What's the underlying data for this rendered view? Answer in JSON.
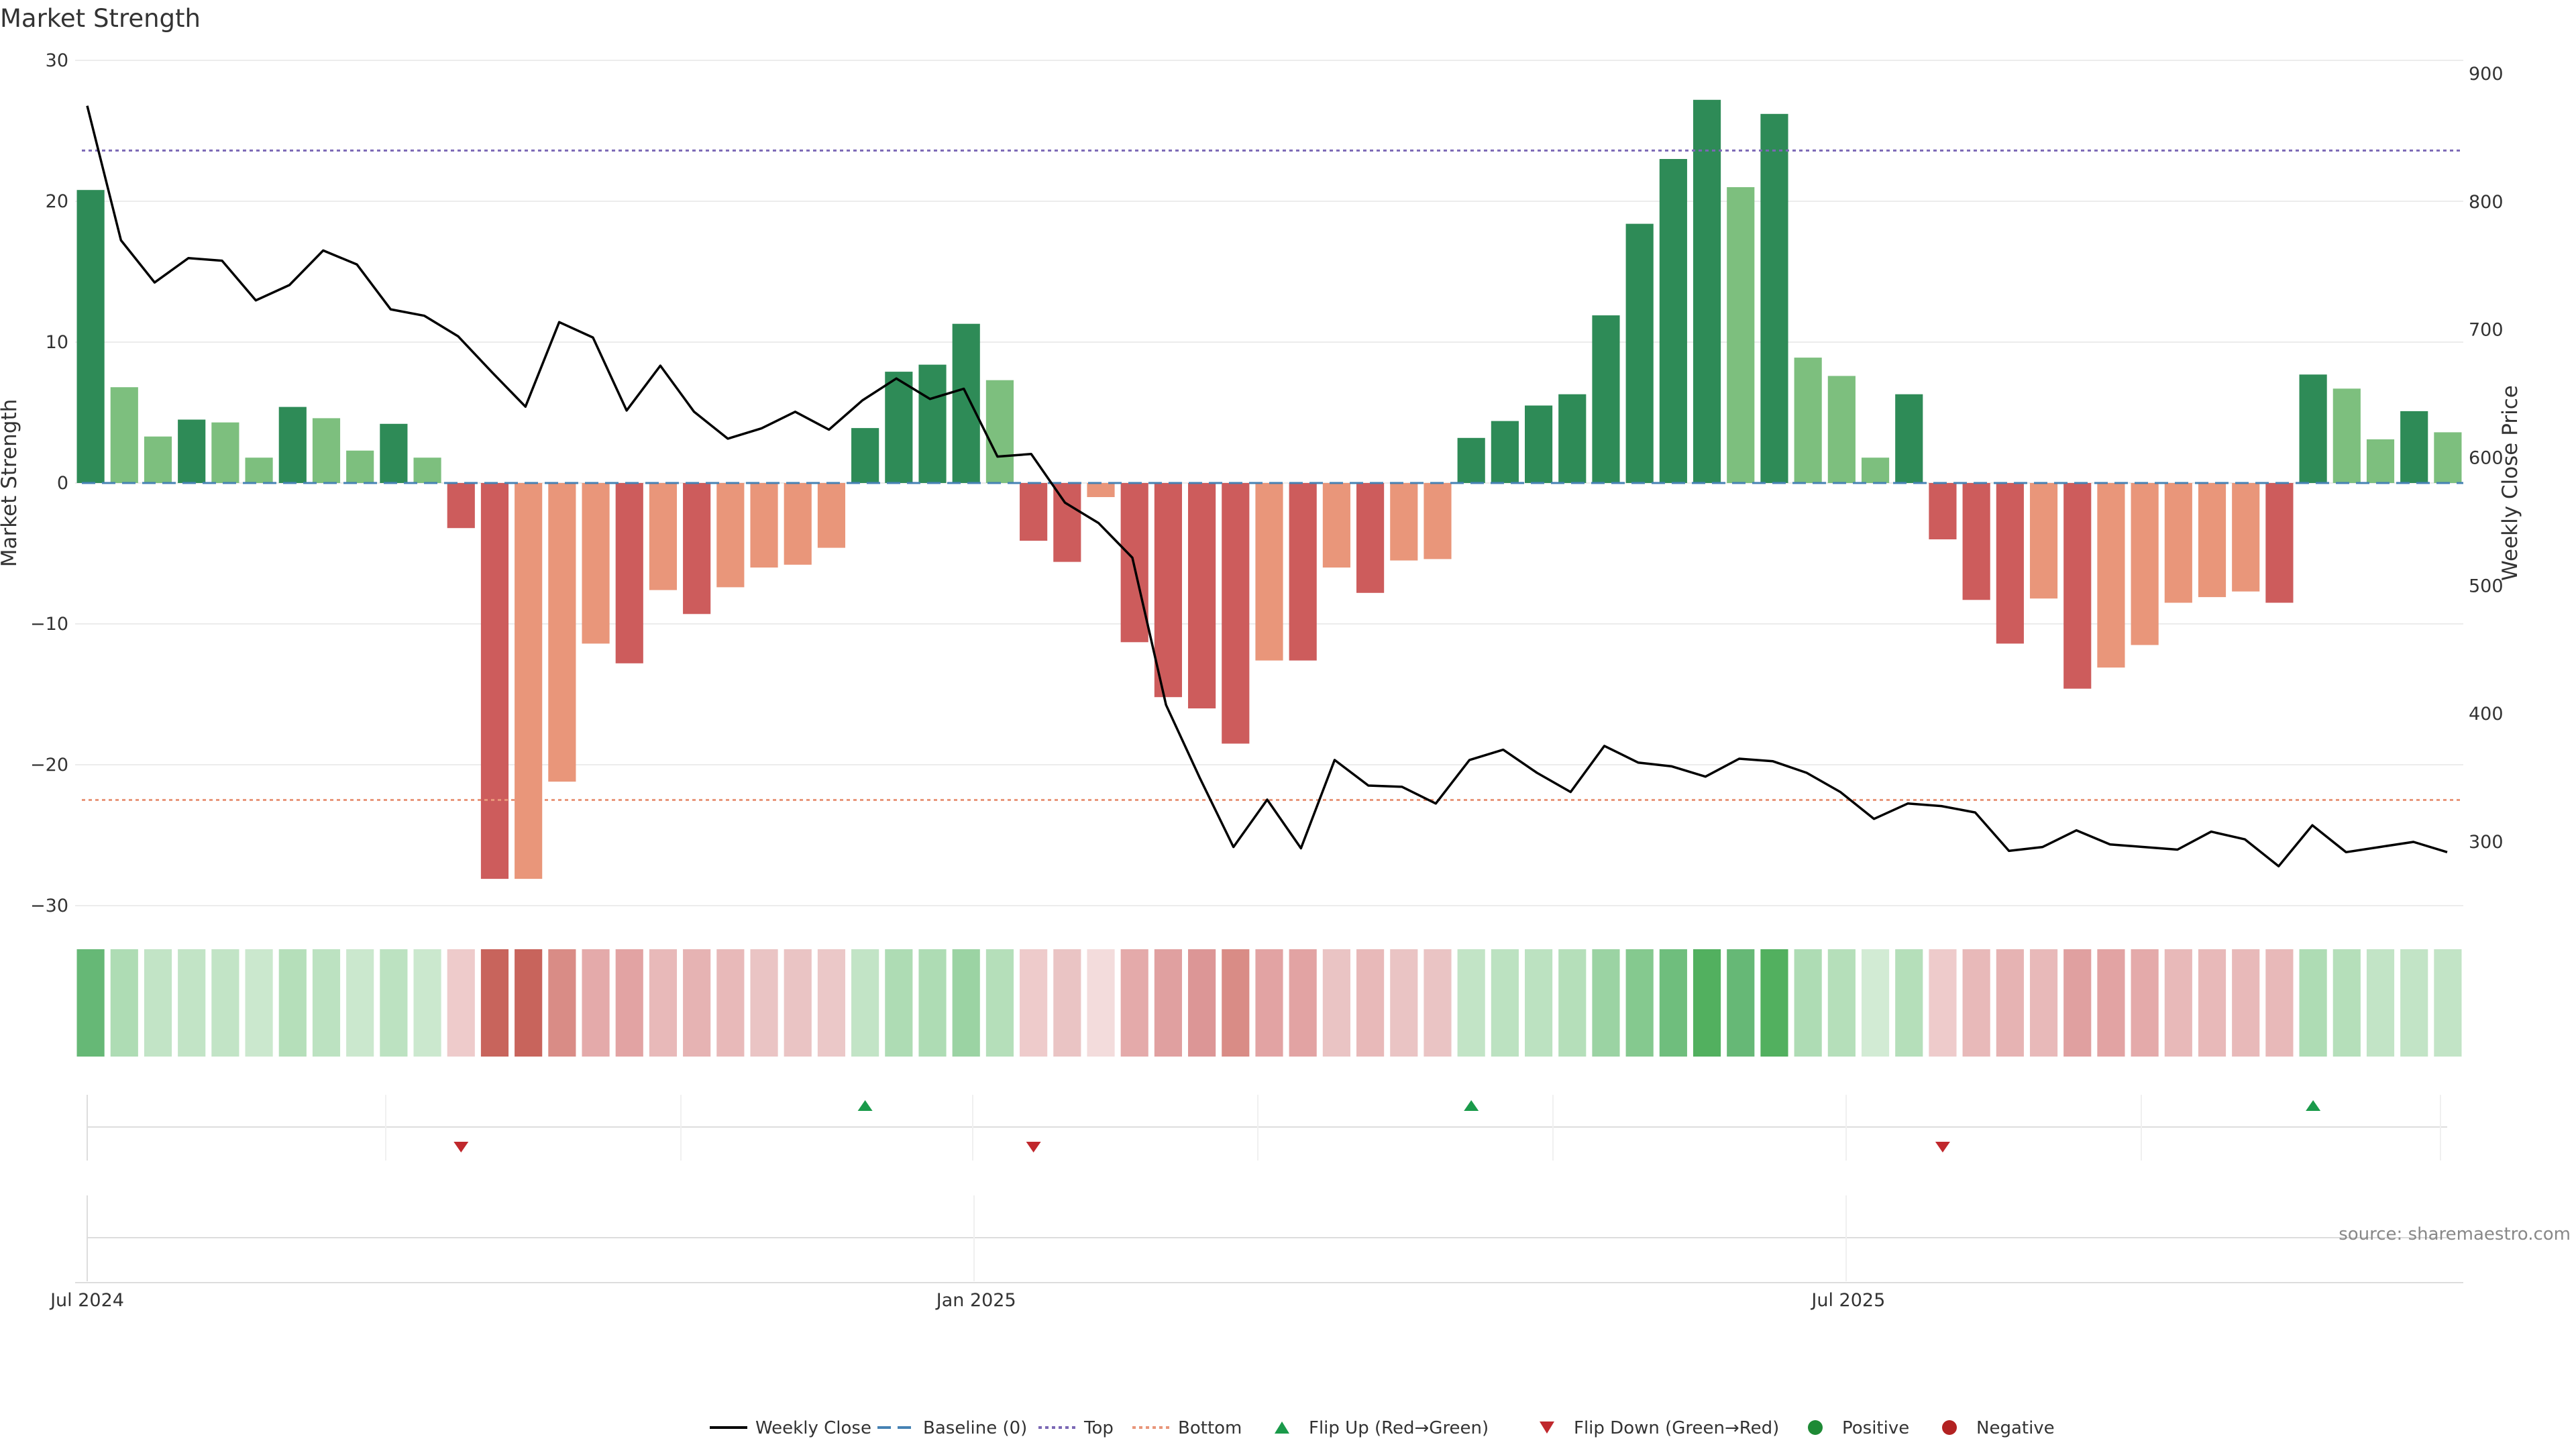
{
  "chart_data": {
    "type": "bar",
    "title": "Market Strength",
    "ylabel_left": "Market Strength",
    "ylabel_right": "Weekly Close Price",
    "ylim_left": [
      -30,
      30
    ],
    "ylim_right": [
      250,
      900
    ],
    "y_ticks_left": [
      30,
      20,
      10,
      0,
      -10,
      -20,
      -30
    ],
    "y_tick_labels_left": [
      "30",
      "20",
      "10",
      "0",
      "−10",
      "−20",
      "−30"
    ],
    "y_ticks_right": [
      900,
      800,
      700,
      600,
      500,
      400,
      300
    ],
    "y_tick_labels_right": [
      "900",
      "800",
      "700",
      "600",
      "500",
      "400",
      "300"
    ],
    "x_tick_labels": [
      {
        "label": "Jul 2024",
        "week_index": 0
      },
      {
        "label": "Jan 2025",
        "week_index": 26.4
      },
      {
        "label": "Jul 2025",
        "week_index": 52.3
      }
    ],
    "reference_lines": {
      "top": 23.6,
      "bottom": -22.5,
      "baseline": 0
    },
    "strength_values": [
      20.8,
      6.8,
      3.3,
      4.5,
      4.3,
      1.8,
      5.4,
      4.6,
      2.3,
      4.2,
      1.8,
      -3.2,
      -28.1,
      -28.1,
      -21.2,
      -11.4,
      -12.8,
      -7.6,
      -9.3,
      -7.4,
      -6.0,
      -5.8,
      -4.6,
      3.9,
      7.9,
      8.4,
      11.3,
      7.3,
      -4.1,
      -5.6,
      -1.0,
      -11.3,
      -15.2,
      -16.0,
      -18.5,
      -12.6,
      -12.6,
      -6.0,
      -7.8,
      -5.5,
      -5.4,
      3.2,
      4.4,
      5.5,
      6.3,
      11.9,
      18.4,
      23.0,
      27.2,
      21.0,
      26.2,
      8.9,
      7.6,
      1.8,
      6.3,
      -4.0,
      -8.3,
      -11.4,
      -8.2,
      -14.6,
      -13.1,
      -11.5,
      -8.5,
      -8.1,
      -7.7,
      -8.5,
      7.7,
      6.7,
      3.1,
      5.1,
      3.6
    ],
    "bar_colors": [
      "#2e8b57",
      "#7dbf7e",
      "#7dbf7e",
      "#2e8b57",
      "#7dbf7e",
      "#7dbf7e",
      "#2e8b57",
      "#7dbf7e",
      "#7dbf7e",
      "#2e8b57",
      "#7dbf7e",
      "#cd5c5c",
      "#cd5c5c",
      "#e9967a",
      "#e9967a",
      "#e9967a",
      "#cd5c5c",
      "#e9967a",
      "#cd5c5c",
      "#e9967a",
      "#e9967a",
      "#e9967a",
      "#e9967a",
      "#2e8b57",
      "#2e8b57",
      "#2e8b57",
      "#2e8b57",
      "#7dbf7e",
      "#cd5c5c",
      "#cd5c5c",
      "#e9967a",
      "#cd5c5c",
      "#cd5c5c",
      "#cd5c5c",
      "#cd5c5c",
      "#e9967a",
      "#cd5c5c",
      "#e9967a",
      "#cd5c5c",
      "#e9967a",
      "#e9967a",
      "#2e8b57",
      "#2e8b57",
      "#2e8b57",
      "#2e8b57",
      "#2e8b57",
      "#2e8b57",
      "#2e8b57",
      "#2e8b57",
      "#7dbf7e",
      "#2e8b57",
      "#7dbf7e",
      "#7dbf7e",
      "#7dbf7e",
      "#2e8b57",
      "#cd5c5c",
      "#cd5c5c",
      "#cd5c5c",
      "#e9967a",
      "#cd5c5c",
      "#e9967a",
      "#e9967a",
      "#e9967a",
      "#e9967a",
      "#e9967a",
      "#cd5c5c",
      "#2e8b57",
      "#7dbf7e",
      "#7dbf7e",
      "#2e8b57",
      "#7dbf7e"
    ],
    "series": [
      {
        "name": "Weekly Close",
        "points": [
          [
            0,
            875
          ],
          [
            1,
            770
          ],
          [
            2,
            737
          ],
          [
            3,
            756
          ],
          [
            4,
            754
          ],
          [
            5,
            723
          ],
          [
            6,
            735
          ],
          [
            7,
            762
          ],
          [
            8,
            751
          ],
          [
            9,
            716
          ],
          [
            10,
            711
          ],
          [
            11,
            695
          ],
          [
            12,
            667
          ],
          [
            13,
            640
          ],
          [
            14,
            706
          ],
          [
            15,
            694
          ],
          [
            16,
            637
          ],
          [
            17,
            672
          ],
          [
            18,
            636
          ],
          [
            19,
            615
          ],
          [
            20,
            623
          ],
          [
            21,
            636
          ],
          [
            22,
            622
          ],
          [
            23,
            645
          ],
          [
            24,
            662
          ],
          [
            25,
            646
          ],
          [
            26,
            654
          ],
          [
            27,
            601
          ],
          [
            28,
            603
          ],
          [
            29,
            565
          ],
          [
            30,
            549
          ],
          [
            31,
            522
          ],
          [
            32,
            407
          ],
          [
            33,
            350
          ],
          [
            34,
            296
          ],
          [
            35,
            333
          ],
          [
            36,
            295
          ],
          [
            37,
            364
          ],
          [
            38,
            344
          ],
          [
            39,
            343
          ],
          [
            40,
            330
          ],
          [
            41,
            364
          ],
          [
            42,
            372
          ],
          [
            43,
            354
          ],
          [
            44,
            339
          ],
          [
            45,
            375
          ],
          [
            46,
            362
          ],
          [
            47,
            359
          ],
          [
            48,
            351
          ],
          [
            49,
            365
          ],
          [
            50,
            363
          ],
          [
            51,
            354
          ],
          [
            52,
            339
          ],
          [
            53,
            318
          ],
          [
            54,
            330
          ],
          [
            55,
            328
          ],
          [
            56,
            323
          ],
          [
            57,
            293
          ],
          [
            58,
            296
          ],
          [
            59,
            309
          ],
          [
            60,
            298
          ],
          [
            61,
            296
          ],
          [
            62,
            294
          ],
          [
            63,
            308
          ],
          [
            64,
            302
          ],
          [
            65,
            281
          ],
          [
            66,
            313
          ],
          [
            67,
            292
          ],
          [
            68,
            296
          ],
          [
            69,
            300
          ],
          [
            70,
            292
          ]
        ]
      }
    ],
    "heat_strip_colors": [
      "#66b876",
      "#aedcb4",
      "#c2e4c6",
      "#c2e4c6",
      "#c2e4c6",
      "#cbe8ce",
      "#b5dfba",
      "#bce2c1",
      "#cbe8ce",
      "#bce2c1",
      "#cbe8ce",
      "#eecbcb",
      "#c8645c",
      "#c8645c",
      "#d98c86",
      "#e4aaaa",
      "#e2a3a3",
      "#e8b9b9",
      "#e6b3b3",
      "#e8b9b9",
      "#eac4c4",
      "#eac4c4",
      "#ebc8c8",
      "#c2e4c6",
      "#aedcb4",
      "#aedcb4",
      "#9bd3a3",
      "#b5dfba",
      "#eecbcb",
      "#eac4c4",
      "#f3dcdc",
      "#e4aaaa",
      "#e0a0a0",
      "#dc9696",
      "#d98c86",
      "#e2a3a3",
      "#e2a3a3",
      "#eac4c4",
      "#e8b9b9",
      "#eac4c4",
      "#eac4c4",
      "#c2e4c6",
      "#bce2c1",
      "#bce2c1",
      "#b5dfba",
      "#9bd3a3",
      "#85c98f",
      "#6fbe7d",
      "#52b05f",
      "#66b876",
      "#52b05f",
      "#aedcb4",
      "#b5dfba",
      "#d2ebd4",
      "#b5dfba",
      "#eecbcb",
      "#e8b9b9",
      "#e6b3b3",
      "#e8b9b9",
      "#e0a0a0",
      "#e2a3a3",
      "#e4aaaa",
      "#e8b9b9",
      "#e8b9b9",
      "#e8b9b9",
      "#e8b9b9",
      "#aedcb4",
      "#b5dfba",
      "#c2e4c6",
      "#c2e4c6",
      "#c2e4c6"
    ],
    "flip_up_weeks": [
      23,
      41,
      66
    ],
    "flip_down_weeks": [
      11,
      28,
      55
    ],
    "source_text": "source: sharemaestro.com",
    "legend": [
      {
        "type": "line",
        "label": "Weekly Close",
        "color": "#000000",
        "dash": ""
      },
      {
        "type": "line",
        "label": "Baseline (0)",
        "color": "#4682b4",
        "dash": "20,10"
      },
      {
        "type": "line",
        "label": "Top",
        "color": "#7b68b5",
        "dash": "5,5"
      },
      {
        "type": "line",
        "label": "Bottom",
        "color": "#e9967a",
        "dash": "5,5"
      },
      {
        "type": "triangle-up",
        "label": "Flip Up (Red→Green)",
        "color": "#1a9a4a"
      },
      {
        "type": "triangle-down",
        "label": "Flip Down (Green→Red)",
        "color": "#c0282d"
      },
      {
        "type": "dot",
        "label": "Positive",
        "color": "#1e8a35"
      },
      {
        "type": "dot",
        "label": "Negative",
        "color": "#b22222"
      }
    ]
  }
}
